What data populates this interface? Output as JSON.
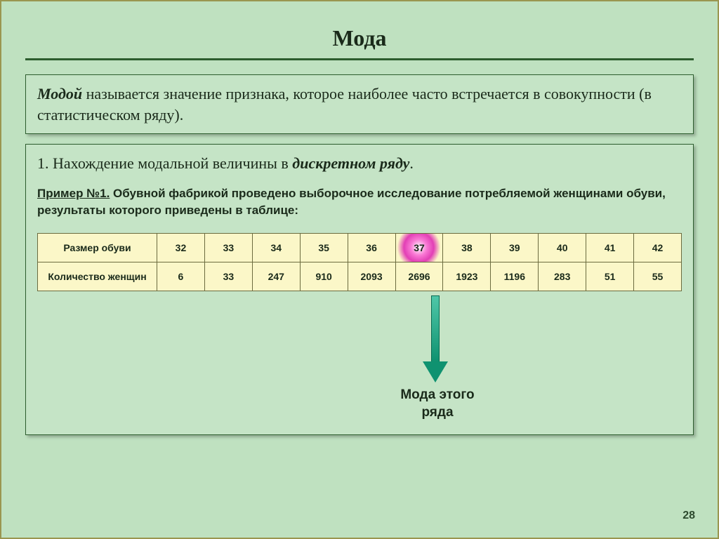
{
  "page": {
    "number": "28"
  },
  "title": "Мода",
  "definition": {
    "lead": "Модой",
    "rest": " называется значение признака, которое наиболее часто встречается в совокупности (в статистическом ряду)."
  },
  "section": {
    "num": "1. ",
    "text_before": "Нахождение модальной величины в ",
    "term": "дискретном ряду",
    "text_after": "."
  },
  "example": {
    "label": "Пример №1.",
    "text": " Обувной фабрикой проведено выборочное исследование потребляемой женщинами обуви, результаты которого приведены в таблице:"
  },
  "table": {
    "row1_label": "Размер обуви",
    "row2_label": "Количество женщин",
    "highlight_index": 5,
    "sizes": [
      "32",
      "33",
      "34",
      "35",
      "36",
      "37",
      "38",
      "39",
      "40",
      "41",
      "42"
    ],
    "counts": [
      "6",
      "33",
      "247",
      "910",
      "2093",
      "2696",
      "1923",
      "1196",
      "283",
      "51",
      "55"
    ],
    "colors": {
      "cell_bg": "#fbf7c8",
      "border": "#6b6b3f",
      "highlight_center": "#ffffff",
      "highlight_mid": "#f978d4",
      "highlight_edge": "#e23fb5"
    }
  },
  "arrow": {
    "label_l1": "Мода этого",
    "label_l2": "ряда",
    "shaft_color_top": "#4fc7a8",
    "shaft_color_bottom": "#0f9270",
    "border_color": "#0a6b52"
  },
  "layout": {
    "bg": "#bfe1c0",
    "hr_color": "#2d5d2e",
    "box_bg": "#c5e4c6"
  }
}
